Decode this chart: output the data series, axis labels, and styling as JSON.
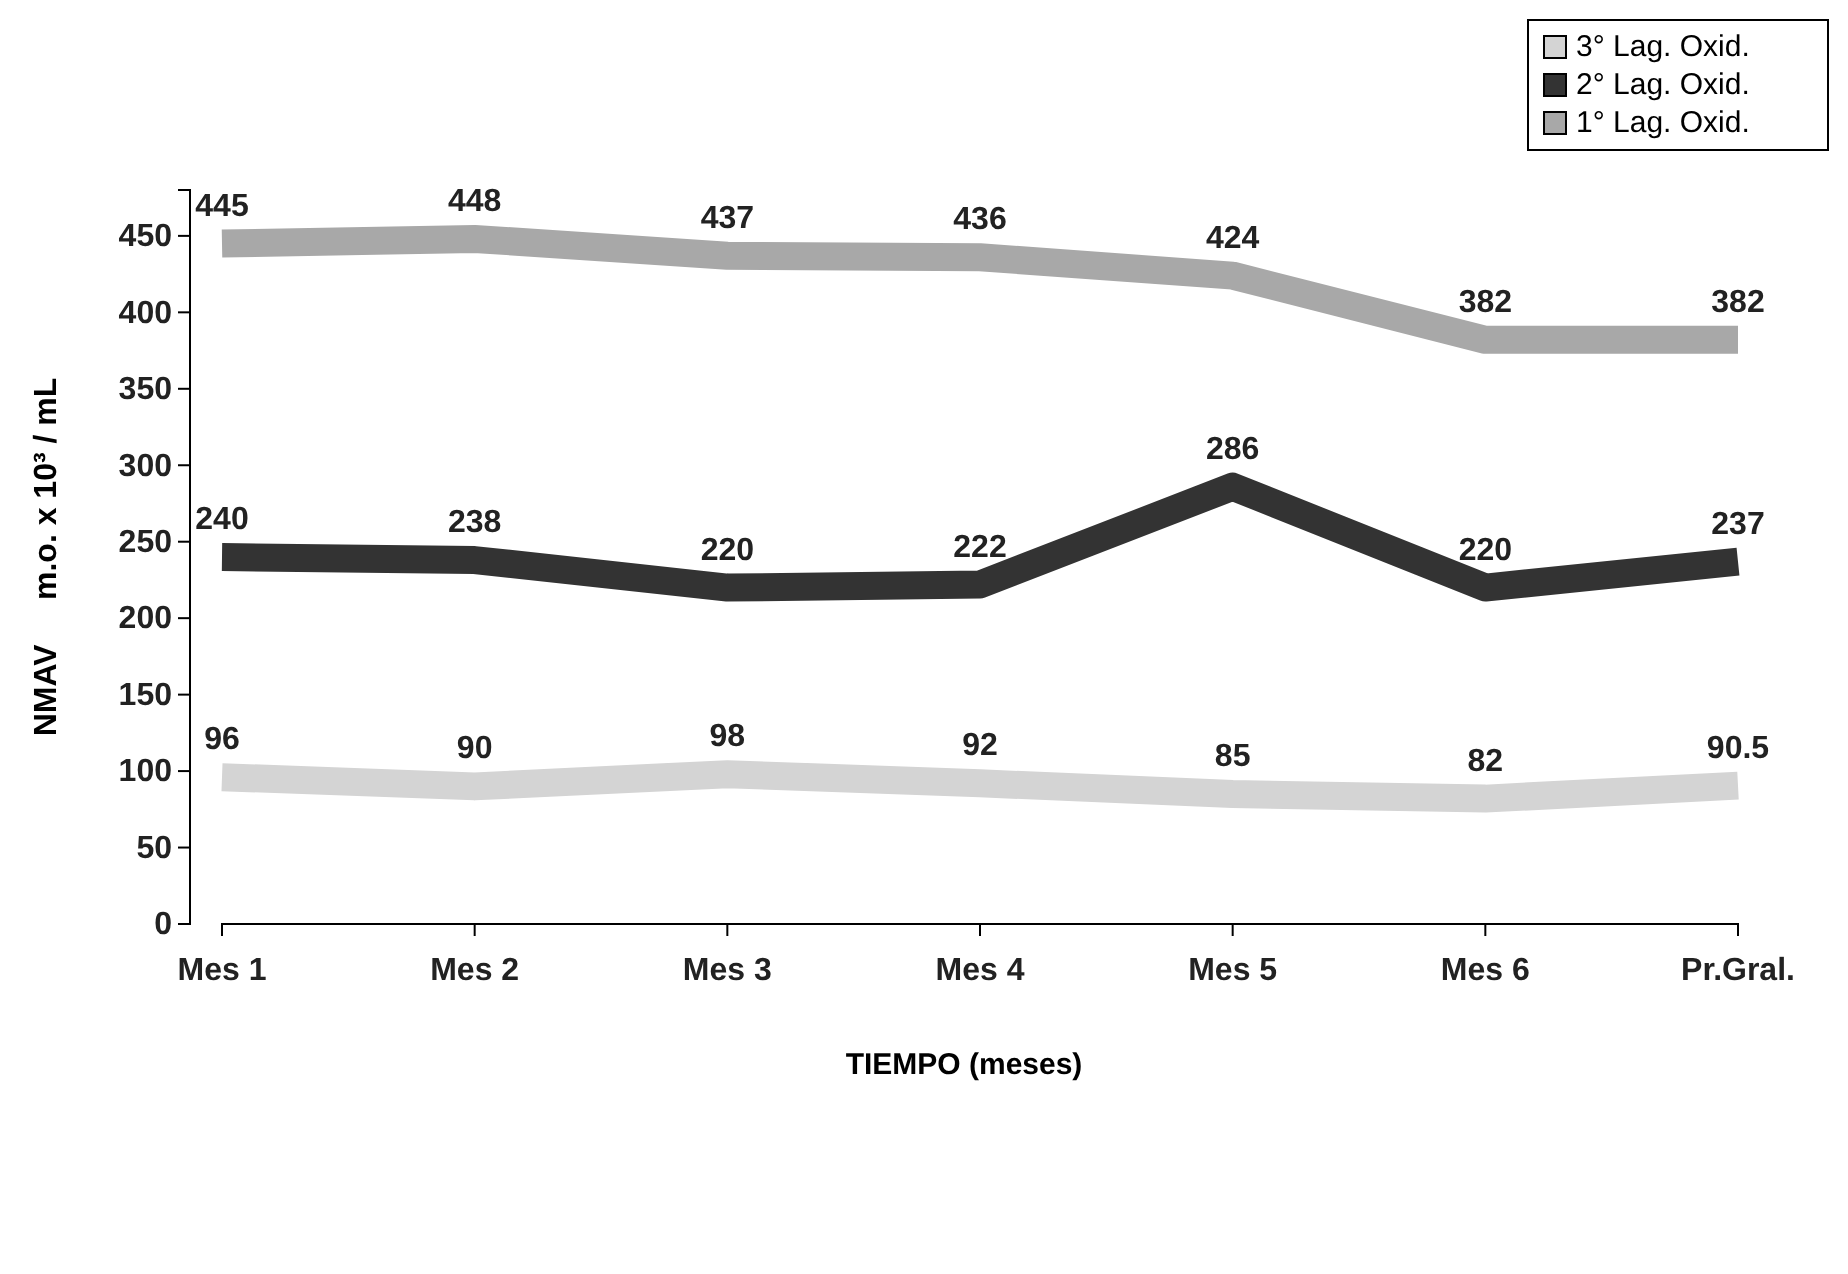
{
  "chart_data": {
    "type": "line",
    "xlabel": "TIEMPO (meses)",
    "ylabel": "NMAV     m.o. x 10³ / mL",
    "categories": [
      "Mes 1",
      "Mes 2",
      "Mes 3",
      "Mes 4",
      "Mes 5",
      "Mes 6",
      "Pr.Gral."
    ],
    "series": [
      {
        "name": "3° Lag. Oxid.",
        "color": "#d4d4d4",
        "values": [
          96,
          90,
          98,
          92,
          85,
          82,
          90.5
        ]
      },
      {
        "name": "2° Lag. Oxid.",
        "color": "#333333",
        "values": [
          240,
          238,
          220,
          222,
          286,
          220,
          237
        ]
      },
      {
        "name": "1° Lag. Oxid.",
        "color": "#a8a8a8",
        "values": [
          445,
          448,
          437,
          436,
          424,
          382,
          382
        ]
      }
    ],
    "ylim": [
      0,
      480
    ],
    "yticks": [
      0,
      50,
      100,
      150,
      200,
      250,
      300,
      350,
      400,
      450
    ],
    "data_labels": true,
    "legend": "top right",
    "marker": "none",
    "line_style": "solid",
    "grid": false
  }
}
